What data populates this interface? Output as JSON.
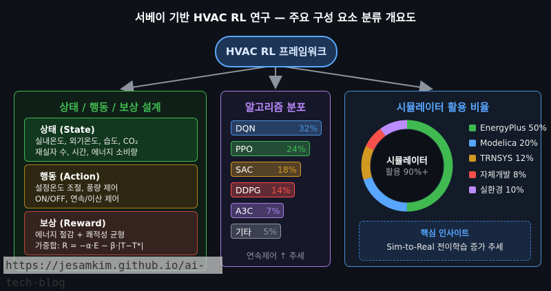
{
  "title": "서베이 기반 HVAC RL 연구 — 주요 구성 요소 분류 개요도",
  "hub": "HVAC RL 프레임워크",
  "design": {
    "title": "상태 / 행동 / 보상 설계",
    "cards": [
      {
        "heading": "상태 (State)",
        "lines": [
          "실내온도, 외기온도, 습도, CO₂",
          "재실자 수, 시간, 에너지 소비량"
        ]
      },
      {
        "heading": "행동 (Action)",
        "lines": [
          "설정온도 조절, 풍량 제어",
          "ON/OFF, 연속/이산 제어"
        ]
      },
      {
        "heading": "보상 (Reward)",
        "lines": [
          "에너지 절감 + 쾌적성 균형",
          "가중합: R = −α·E − β·|T−T*|"
        ]
      }
    ]
  },
  "algorithms": {
    "title": "알고리즘 분포",
    "items": [
      {
        "name": "DQN",
        "value": "32%",
        "pct": 32,
        "color": "#4a90d9"
      },
      {
        "name": "PPO",
        "value": "24%",
        "pct": 24,
        "color": "#3fb950"
      },
      {
        "name": "SAC",
        "value": "18%",
        "pct": 18,
        "color": "#d29922"
      },
      {
        "name": "DDPG",
        "value": "14%",
        "pct": 14,
        "color": "#f85149"
      },
      {
        "name": "A3C",
        "value": "7%",
        "pct": 7,
        "color": "#a57fe0"
      },
      {
        "name": "기타",
        "value": "5%",
        "pct": 5,
        "color": "#8b949e"
      }
    ],
    "footer": "연속제어 ↑ 추세"
  },
  "simulators": {
    "title": "시뮬레이터 활용 비율",
    "center_title": "시뮬레이터",
    "center_sub": "활용 90%+",
    "items": [
      {
        "label": "EnergyPlus 50%",
        "pct": 50,
        "color": "#3fb950"
      },
      {
        "label": "Modelica 20%",
        "pct": 20,
        "color": "#58a6ff"
      },
      {
        "label": "TRNSYS 12%",
        "pct": 12,
        "color": "#d29922"
      },
      {
        "label": "자체개발 8%",
        "pct": 8,
        "color": "#f85149"
      },
      {
        "label": "실환경 10%",
        "pct": 10,
        "color": "#bc8cff"
      }
    ],
    "insight_title": "핵심 인사이트",
    "insight_text": "Sim-to-Real 전이학습 증가 추세"
  },
  "watermark": "https://jesamkim.github.io/ai-tech-blog"
}
